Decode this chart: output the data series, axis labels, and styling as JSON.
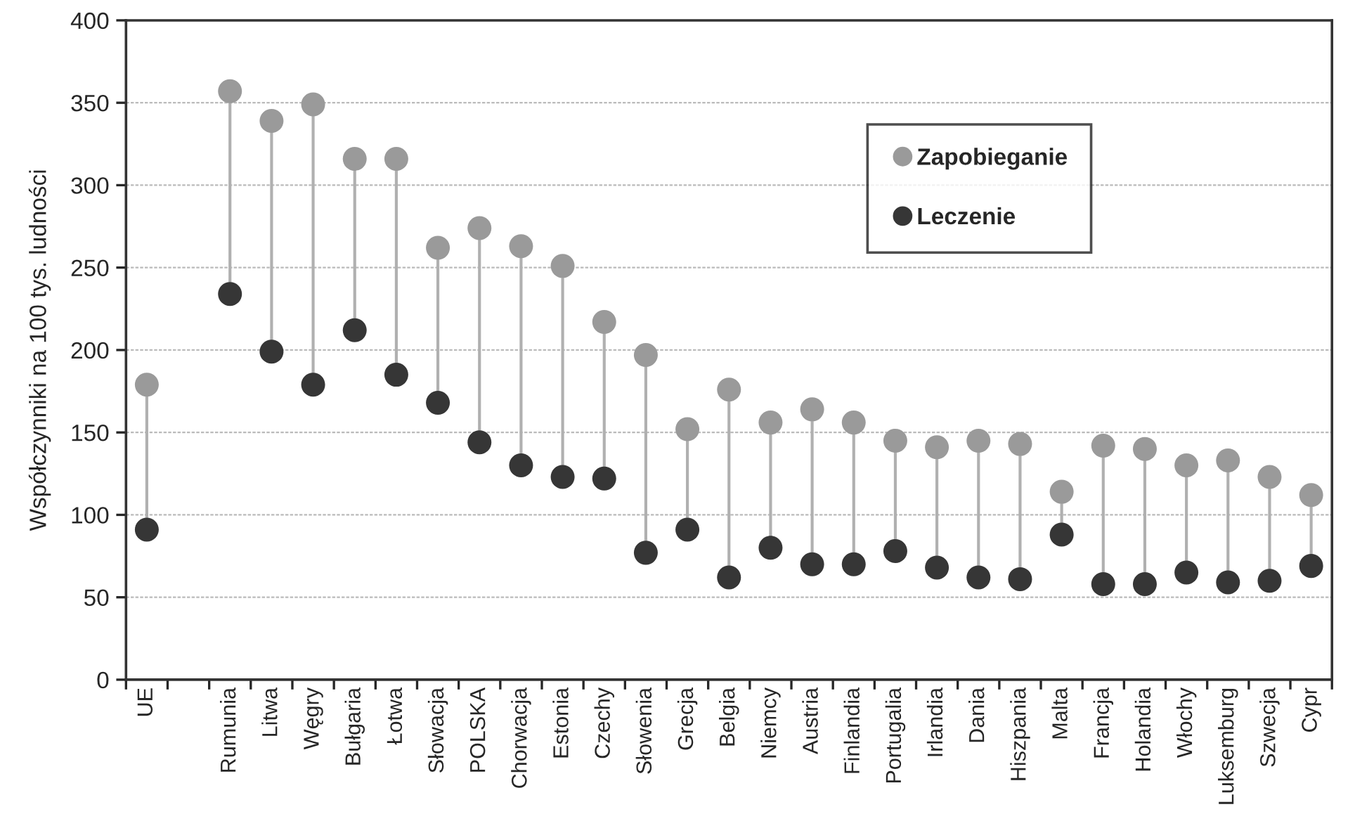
{
  "chart_data": {
    "type": "scatter",
    "ylabel": "Współczynniki na 100 tys. ludności",
    "categories": [
      "UE",
      null,
      "Rumunia",
      "Litwa",
      "Węgry",
      "Bułgaria",
      "Łotwa",
      "Słowacja",
      "POLSKA",
      "Chorwacja",
      "Estonia",
      "Czechy",
      "Słowenia",
      "Grecja",
      "Belgia",
      "Niemcy",
      "Austria",
      "Finlandia",
      "Portugalia",
      "Irlandia",
      "Dania",
      "Hiszpania",
      "Malta",
      "Francja",
      "Holandia",
      "Włochy",
      "Luksemburg",
      "Szwecja",
      "Cypr"
    ],
    "series": [
      {
        "name": "Zapobieganie",
        "color": "#9a9a9a",
        "values": [
          179,
          null,
          357,
          339,
          349,
          316,
          316,
          262,
          274,
          263,
          251,
          217,
          197,
          152,
          176,
          156,
          164,
          156,
          145,
          141,
          145,
          143,
          114,
          142,
          140,
          130,
          133,
          123,
          112
        ]
      },
      {
        "name": "Leczenie",
        "color": "#363636",
        "values": [
          91,
          null,
          234,
          199,
          179,
          212,
          185,
          168,
          144,
          130,
          123,
          122,
          77,
          91,
          62,
          80,
          70,
          70,
          78,
          68,
          62,
          61,
          88,
          58,
          58,
          65,
          59,
          60,
          69
        ]
      }
    ],
    "ylim": [
      0,
      400
    ],
    "yticks": [
      0,
      50,
      100,
      150,
      200,
      250,
      300,
      350,
      400
    ],
    "grid": "y",
    "legend": "top right",
    "marker": "circle"
  }
}
